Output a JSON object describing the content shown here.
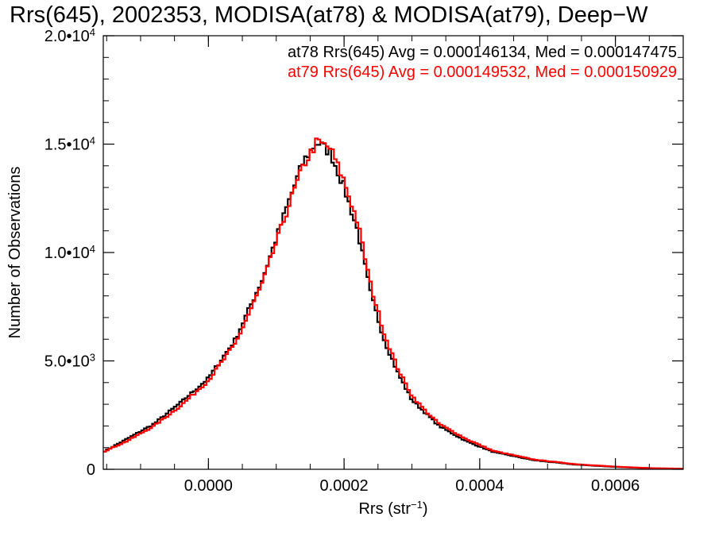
{
  "chart_data": {
    "type": "histogram-step",
    "title": "Rrs(645), 2002353, MODISA(at78) & MODISA(at79), Deep−W",
    "xlabel": {
      "main": "Rrs (str",
      "sup": "−1",
      "tail": ")"
    },
    "ylabel": "Number of Observations",
    "xlim": [
      -0.000155,
      0.0007
    ],
    "ylim": [
      0,
      20000
    ],
    "x_ticks": [
      {
        "value": 0.0,
        "label": "0.0000"
      },
      {
        "value": 0.0002,
        "label": "0.0002"
      },
      {
        "value": 0.0004,
        "label": "0.0004"
      },
      {
        "value": 0.0006,
        "label": "0.0006"
      }
    ],
    "y_ticks": [
      {
        "value": 0,
        "mant": "0",
        "exp": ""
      },
      {
        "value": 5000,
        "mant": "5.0•10",
        "exp": "3"
      },
      {
        "value": 10000,
        "mant": "1.0•10",
        "exp": "4"
      },
      {
        "value": 15000,
        "mant": "1.5•10",
        "exp": "4"
      },
      {
        "value": 20000,
        "mant": "2.0•10",
        "exp": "4"
      }
    ],
    "bin_width": 4e-06,
    "annotations": [
      {
        "text": "at78 Rrs(645) Avg = 0.000146134, Med = 0.000147475",
        "color": "#000000"
      },
      {
        "text": "at79 Rrs(645) Avg = 0.000149532, Med = 0.000150929",
        "color": "#ff0000"
      }
    ],
    "series": [
      {
        "color": "#000000",
        "points": [
          [
            -0.000155,
            800
          ],
          [
            -0.00012,
            1400
          ],
          [
            -8e-05,
            2100
          ],
          [
            -4e-05,
            3100
          ],
          [
            0.0,
            4200
          ],
          [
            4e-05,
            6000
          ],
          [
            8e-05,
            8800
          ],
          [
            0.00012,
            12500
          ],
          [
            0.00014,
            14200
          ],
          [
            0.00016,
            15100
          ],
          [
            0.00018,
            14600
          ],
          [
            0.0002,
            13000
          ],
          [
            0.00022,
            11000
          ],
          [
            0.00024,
            8000
          ],
          [
            0.00026,
            5900
          ],
          [
            0.00028,
            4400
          ],
          [
            0.0003,
            3200
          ],
          [
            0.00032,
            2600
          ],
          [
            0.00034,
            2000
          ],
          [
            0.00038,
            1300
          ],
          [
            0.00042,
            800
          ],
          [
            0.00048,
            420
          ],
          [
            0.00054,
            220
          ],
          [
            0.0006,
            110
          ],
          [
            0.00065,
            50
          ],
          [
            0.0007,
            20
          ]
        ]
      },
      {
        "color": "#ff0000",
        "points": [
          [
            -0.000155,
            800
          ],
          [
            -0.00012,
            1300
          ],
          [
            -8e-05,
            2000
          ],
          [
            -4e-05,
            2950
          ],
          [
            0.0,
            4100
          ],
          [
            4e-05,
            5800
          ],
          [
            8e-05,
            8600
          ],
          [
            0.00012,
            12300
          ],
          [
            0.00014,
            14000
          ],
          [
            0.00016,
            15100
          ],
          [
            0.00018,
            14800
          ],
          [
            0.0002,
            13300
          ],
          [
            0.00022,
            11400
          ],
          [
            0.00024,
            8400
          ],
          [
            0.00026,
            6200
          ],
          [
            0.00028,
            4600
          ],
          [
            0.0003,
            3400
          ],
          [
            0.00032,
            2700
          ],
          [
            0.00034,
            2100
          ],
          [
            0.00038,
            1400
          ],
          [
            0.00042,
            850
          ],
          [
            0.00048,
            450
          ],
          [
            0.00054,
            240
          ],
          [
            0.0006,
            120
          ],
          [
            0.00065,
            55
          ],
          [
            0.0007,
            25
          ]
        ]
      }
    ]
  }
}
